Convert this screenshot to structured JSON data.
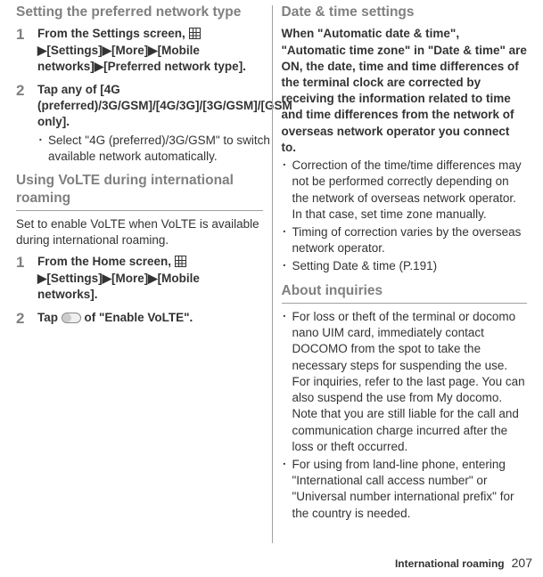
{
  "left": {
    "section1": {
      "heading": "Setting the preferred network type",
      "step1": {
        "num": "1",
        "prefix": "From the Settings screen, ",
        "chain": "▶[Settings]▶[More]▶[Mobile networks]▶[Preferred network type]."
      },
      "step2": {
        "num": "2",
        "title": "Tap any of [4G (preferred)/3G/GSM]/[4G/3G]/[3G/GSM]/[GSM only].",
        "bullet": "Select \"4G (preferred)/3G/GSM\" to switch available network automatically."
      }
    },
    "section2": {
      "heading": "Using VoLTE during international roaming",
      "intro": "Set to enable VoLTE when VoLTE is available during international roaming.",
      "step1": {
        "num": "1",
        "prefix": "From the Home screen, ",
        "chain": "▶[Settings]▶[More]▶[Mobile networks]."
      },
      "step2": {
        "num": "2",
        "prefix": "Tap ",
        "suffix": " of \"Enable VoLTE\"."
      }
    }
  },
  "right": {
    "section1": {
      "heading": "Date & time settings",
      "intro": "When \"Automatic date & time\", \"Automatic time zone\" in \"Date & time\" are ON, the date, time and time differences of the terminal clock are corrected by receiving the information related to time and time differences from the network of overseas network operator you connect to.",
      "b1": "Correction of the time/time differences may not be performed correctly depending on the network of overseas network operator. In that case, set time zone manually.",
      "b2": "Timing of correction varies by the overseas network operator.",
      "b3": "Setting Date & time (P.191)"
    },
    "section2": {
      "heading": "About inquiries",
      "b1": "For loss or theft of the terminal or docomo nano UIM card, immediately contact DOCOMO from the spot to take the necessary steps for suspending the use. For inquiries, refer to the last page. You can also suspend the use from My docomo. Note that you are still liable for the call and communication charge incurred after the loss or theft occurred.",
      "b2": "For using from land-line phone, entering \"International call access number\" or \"Universal number international prefix\" for the country is needed."
    }
  },
  "footer": {
    "label": "International roaming",
    "page": "207"
  }
}
